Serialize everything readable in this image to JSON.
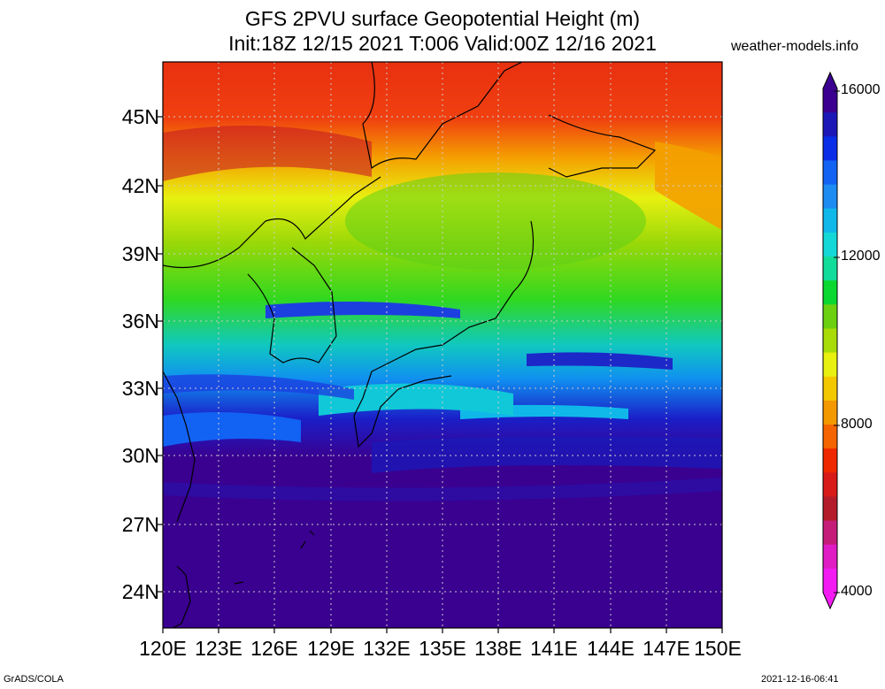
{
  "title": {
    "line1": "GFS 2PVU surface Geopotential Height (m)",
    "line2": "Init:18Z 12/15 2021 T:006 Valid:00Z 12/16 2021"
  },
  "site": "weather-models.info",
  "map": {
    "lat_labels": [
      "45N",
      "42N",
      "39N",
      "36N",
      "33N",
      "30N",
      "27N",
      "24N"
    ],
    "lon_labels": [
      "120E",
      "123E",
      "126E",
      "129E",
      "132E",
      "135E",
      "138E",
      "141E",
      "144E",
      "147E",
      "150E"
    ]
  },
  "colorbar": {
    "labels": [
      "16000",
      "12000",
      "8000",
      "4000"
    ],
    "colors": [
      "#3b0090",
      "#1c18b8",
      "#0a2ee8",
      "#1262f4",
      "#1c8cf2",
      "#10b8ea",
      "#14d8d8",
      "#12dc9a",
      "#0ad830",
      "#6ad010",
      "#a8dc08",
      "#e8f010",
      "#f4c800",
      "#f49800",
      "#f46400",
      "#f02800",
      "#d81a18",
      "#b41c2c",
      "#c41c78",
      "#e01cc4",
      "#f21cf2"
    ]
  },
  "footer": {
    "left": "GrADS/COLA",
    "right": "2021-12-16-06:41"
  }
}
